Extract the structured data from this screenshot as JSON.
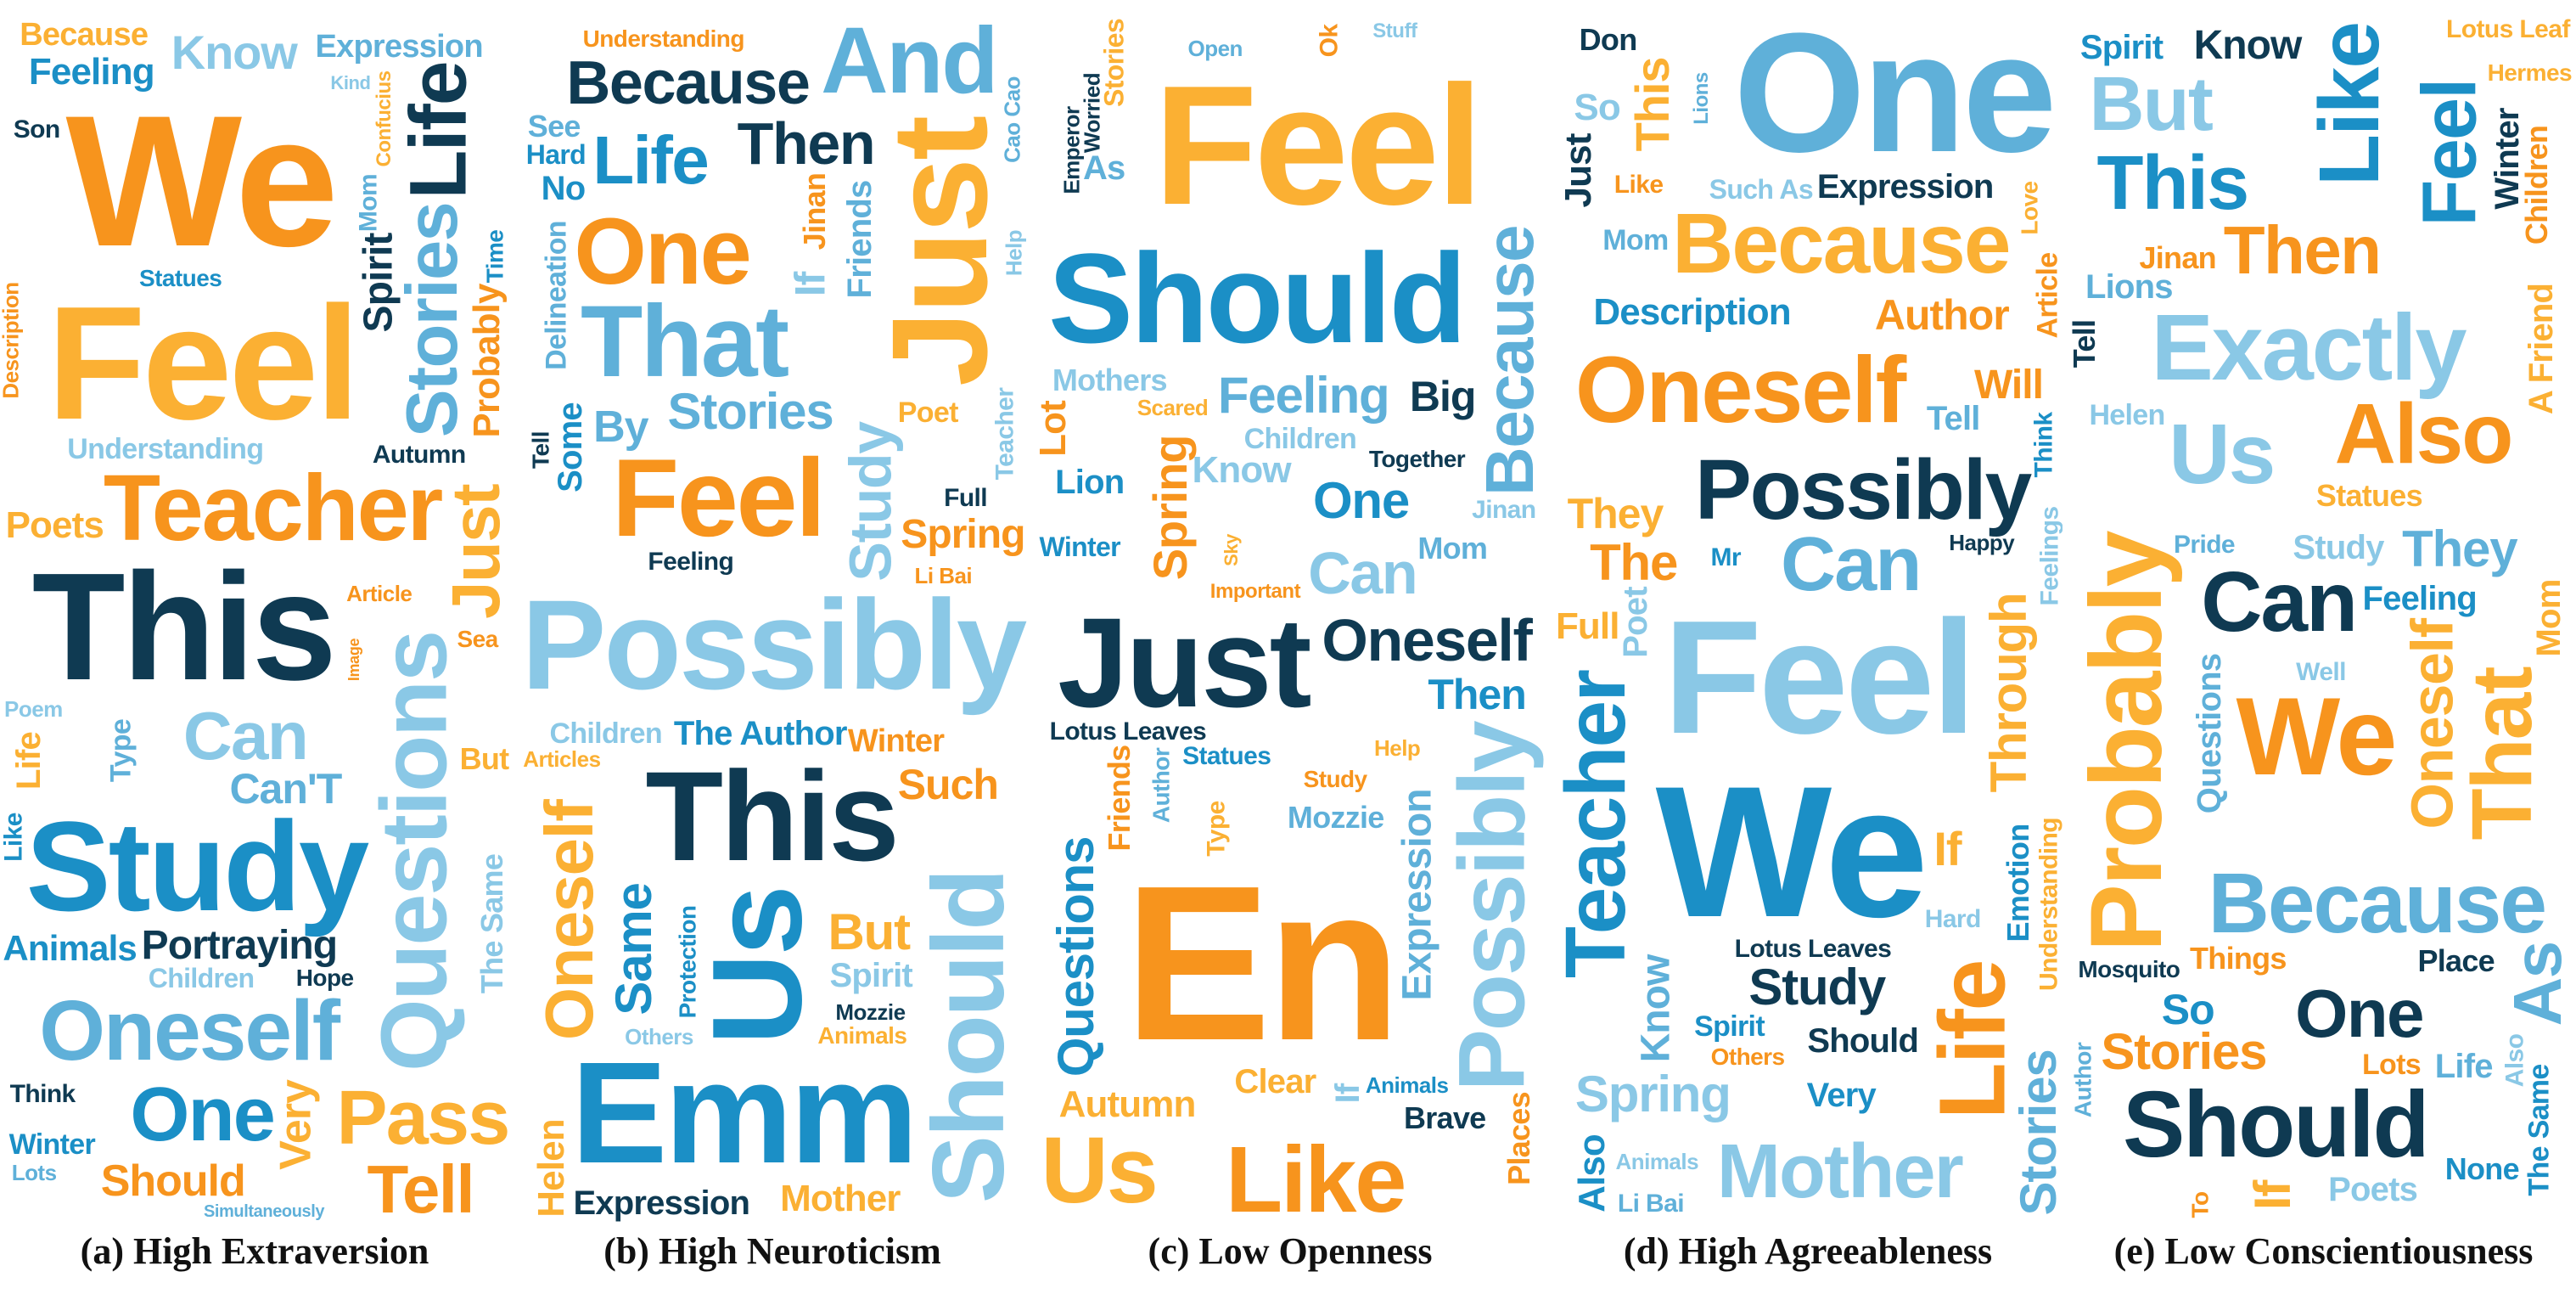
{
  "palette": [
    "#f7941d",
    "#fbb033",
    "#0f3a52",
    "#1b8fc6",
    "#8ac8e6",
    "#5fb0d9"
  ],
  "panels": [
    {
      "caption": "(a) High Extraversion",
      "words": [
        "We",
        "Feel",
        "This",
        "Study",
        "Questions",
        "Oneself",
        "Teacher",
        "Pass",
        "Life",
        "One",
        "Can",
        "Stories",
        "Tell",
        "Just",
        "Portraying",
        "Animals",
        "Know",
        "Can'T",
        "Should",
        "Very",
        "Spirit",
        "Feeling",
        "Understanding",
        "Expression",
        "Probably",
        "Poets",
        "Autumn",
        "Winter",
        "Children",
        "Mom",
        "Article",
        "Because",
        "Hope",
        "Statues",
        "The Same",
        "Type",
        "Description",
        "Confucius",
        "Son",
        "Time",
        "Poem",
        "Lots",
        "Sea",
        "But",
        "Think",
        "Like",
        "Kind",
        "Simultaneously",
        "Image",
        "Life"
      ],
      "sizes": [
        220,
        190,
        180,
        150,
        110,
        100,
        110,
        90,
        95,
        90,
        80,
        85,
        80,
        80,
        48,
        42,
        56,
        50,
        52,
        52,
        48,
        44,
        44,
        38,
        44,
        44,
        30,
        34,
        32,
        30,
        26,
        38,
        28,
        28,
        36,
        34,
        26,
        24,
        30,
        28,
        26,
        26,
        28,
        36,
        30,
        30,
        22,
        20,
        18,
        40
      ]
    },
    {
      "caption": "(b) High Neuroticism",
      "words": [
        "Emm",
        "Possibly",
        "That",
        "Feel",
        "Just",
        "This",
        "Us",
        "Should",
        "And",
        "One",
        "Oneself",
        "Because",
        "Life",
        "Study",
        "Stories",
        "Spring",
        "Helen",
        "Then",
        "Same",
        "Spirit",
        "Friends",
        "Jinan",
        "Mother",
        "Expression",
        "The Author",
        "Children",
        "Delineation",
        "Winter",
        "Poet",
        "Tell",
        "Hard",
        "Teacher",
        "See",
        "Understanding",
        "Animals",
        "Mozzie",
        "Some",
        "Others",
        "Cao Cao",
        "Li Bai",
        "But",
        "Full",
        "No",
        "If",
        "By",
        "Such",
        "Articles",
        "Feeling",
        "Protection",
        "Help"
      ],
      "sizes": [
        170,
        150,
        120,
        130,
        160,
        150,
        150,
        120,
        110,
        110,
        80,
        72,
        80,
        70,
        60,
        48,
        44,
        70,
        60,
        40,
        40,
        36,
        44,
        40,
        40,
        34,
        34,
        38,
        34,
        28,
        32,
        30,
        36,
        28,
        28,
        26,
        40,
        26,
        26,
        26,
        60,
        30,
        40,
        50,
        52,
        50,
        26,
        30,
        28,
        26
      ]
    },
    {
      "caption": "(c) Low Openness",
      "words": [
        "En",
        "Feel",
        "Just",
        "Should",
        "Possibly",
        "Because",
        "Like",
        "Us",
        "Oneself",
        "Questions",
        "Can",
        "Feeling",
        "Spring",
        "Autumn",
        "Big",
        "Then",
        "Know",
        "Mom",
        "Places",
        "Clear",
        "Brave",
        "Lion",
        "Mothers",
        "Expression",
        "Friends",
        "Stories",
        "Lotus Leaves",
        "Winter",
        "Children",
        "Mozzie",
        "Study",
        "Type",
        "Together",
        "Animals",
        "Jinan",
        "Author",
        "Lot",
        "Help",
        "Emperor",
        "Statues",
        "Stuff",
        "Open",
        "Important",
        "Scared",
        "Worried",
        "One",
        "If",
        "As",
        "Ok",
        "Sky"
      ],
      "sizes": [
        260,
        200,
        150,
        150,
        110,
        80,
        110,
        110,
        70,
        60,
        70,
        60,
        56,
        44,
        50,
        50,
        44,
        36,
        36,
        40,
        36,
        40,
        36,
        48,
        36,
        32,
        30,
        32,
        34,
        36,
        28,
        30,
        28,
        26,
        30,
        28,
        44,
        26,
        26,
        30,
        24,
        26,
        24,
        26,
        26,
        60,
        40,
        40,
        30,
        22
      ]
    },
    {
      "caption": "(d) High Agreeableness",
      "words": [
        "We",
        "Feel",
        "One",
        "Oneself",
        "Because",
        "Possibly",
        "Teacher",
        "Mother",
        "Can",
        "Life",
        "Through",
        "Study",
        "Description",
        "Spring",
        "Stories",
        "Author",
        "If",
        "Should",
        "Also",
        "So",
        "Know",
        "Will",
        "This",
        "Expression",
        "Emotion",
        "Poet",
        "Mom",
        "Article",
        "Full",
        "Just",
        "Very",
        "Feelings",
        "Li Bai",
        "Like",
        "Understanding",
        "Lotus Leaves",
        "Spirit",
        "Hard",
        "Tell",
        "Others",
        "They",
        "Don",
        "Think",
        "Such As",
        "Lions",
        "The",
        "Love",
        "Happy",
        "Mr",
        "Animals"
      ],
      "sizes": [
        220,
        190,
        200,
        110,
        100,
        100,
        100,
        90,
        90,
        110,
        60,
        60,
        44,
        60,
        60,
        50,
        56,
        40,
        44,
        44,
        48,
        48,
        56,
        40,
        36,
        40,
        34,
        34,
        44,
        44,
        40,
        30,
        30,
        30,
        30,
        30,
        34,
        30,
        40,
        28,
        50,
        36,
        30,
        32,
        24,
        60,
        28,
        26,
        30,
        26
      ]
    },
    {
      "caption": "(e) Low Conscientiousness",
      "words": [
        "We",
        "Probably",
        "Should",
        "Like",
        "Exactly",
        "Because",
        "Also",
        "That",
        "Can",
        "Feel",
        "But",
        "As",
        "Then",
        "Oneself",
        "One",
        "This",
        "Us",
        "They",
        "Stories",
        "If",
        "Winter",
        "Spirit",
        "Poets",
        "Questions",
        "Jinan",
        "Statues",
        "Know",
        "Feeling",
        "Helen",
        "Lions",
        "Children",
        "Mom",
        "Place",
        "The Same",
        "Study",
        "Life",
        "Things",
        "Lotus Leaf",
        "Tell",
        "None",
        "Also",
        "Pride",
        "To",
        "Hermes",
        "Mosquito",
        "So",
        "Well",
        "Author",
        "Lots",
        "A Friend"
      ],
      "sizes": [
        130,
        120,
        110,
        100,
        110,
        100,
        100,
        100,
        100,
        90,
        90,
        80,
        80,
        70,
        80,
        90,
        100,
        60,
        60,
        60,
        40,
        40,
        40,
        40,
        36,
        36,
        48,
        40,
        34,
        40,
        36,
        40,
        36,
        34,
        40,
        40,
        36,
        30,
        36,
        36,
        30,
        30,
        28,
        28,
        28,
        50,
        30,
        28,
        34,
        40
      ]
    }
  ]
}
